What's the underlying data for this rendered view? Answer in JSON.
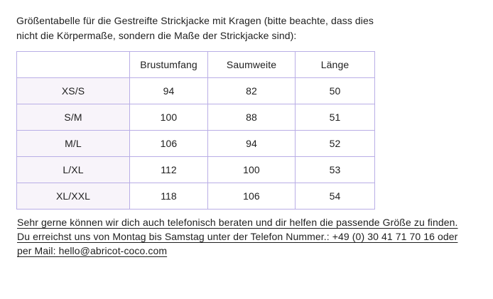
{
  "intro": {
    "line1": "Größentabelle für die Gestreifte Strickjacke mit Kragen (bitte beachte, dass dies",
    "line2": "nicht die Körpermaße, sondern die Maße der Strickjacke sind):"
  },
  "size_table": {
    "headers": [
      "",
      "Brustumfang",
      "Saumweite",
      "Länge"
    ],
    "rows": [
      {
        "size": "XS/S",
        "brustumfang": "94",
        "saumweite": "82",
        "laenge": "50"
      },
      {
        "size": "S/M",
        "brustumfang": "100",
        "saumweite": "88",
        "laenge": "51"
      },
      {
        "size": "M/L",
        "brustumfang": "106",
        "saumweite": "94",
        "laenge": "52"
      },
      {
        "size": "L/XL",
        "brustumfang": "112",
        "saumweite": "100",
        "laenge": "53"
      },
      {
        "size": "XL/XXL",
        "brustumfang": "118",
        "saumweite": "106",
        "laenge": "54"
      }
    ]
  },
  "contact": {
    "line1": "Sehr gerne können wir dich auch telefonisch beraten und dir helfen die passende Größe zu finden.",
    "line2": "Du erreichst uns von Montag bis Samstag unter der Telefon Nummer.: +49 (0) 30 41 71 70 16 oder",
    "line3": "per Mail: hello@abricot-coco.com"
  },
  "colors": {
    "table_border": "#b9aee6",
    "row_header_bg": "#f8f4fa",
    "text": "#202020"
  }
}
